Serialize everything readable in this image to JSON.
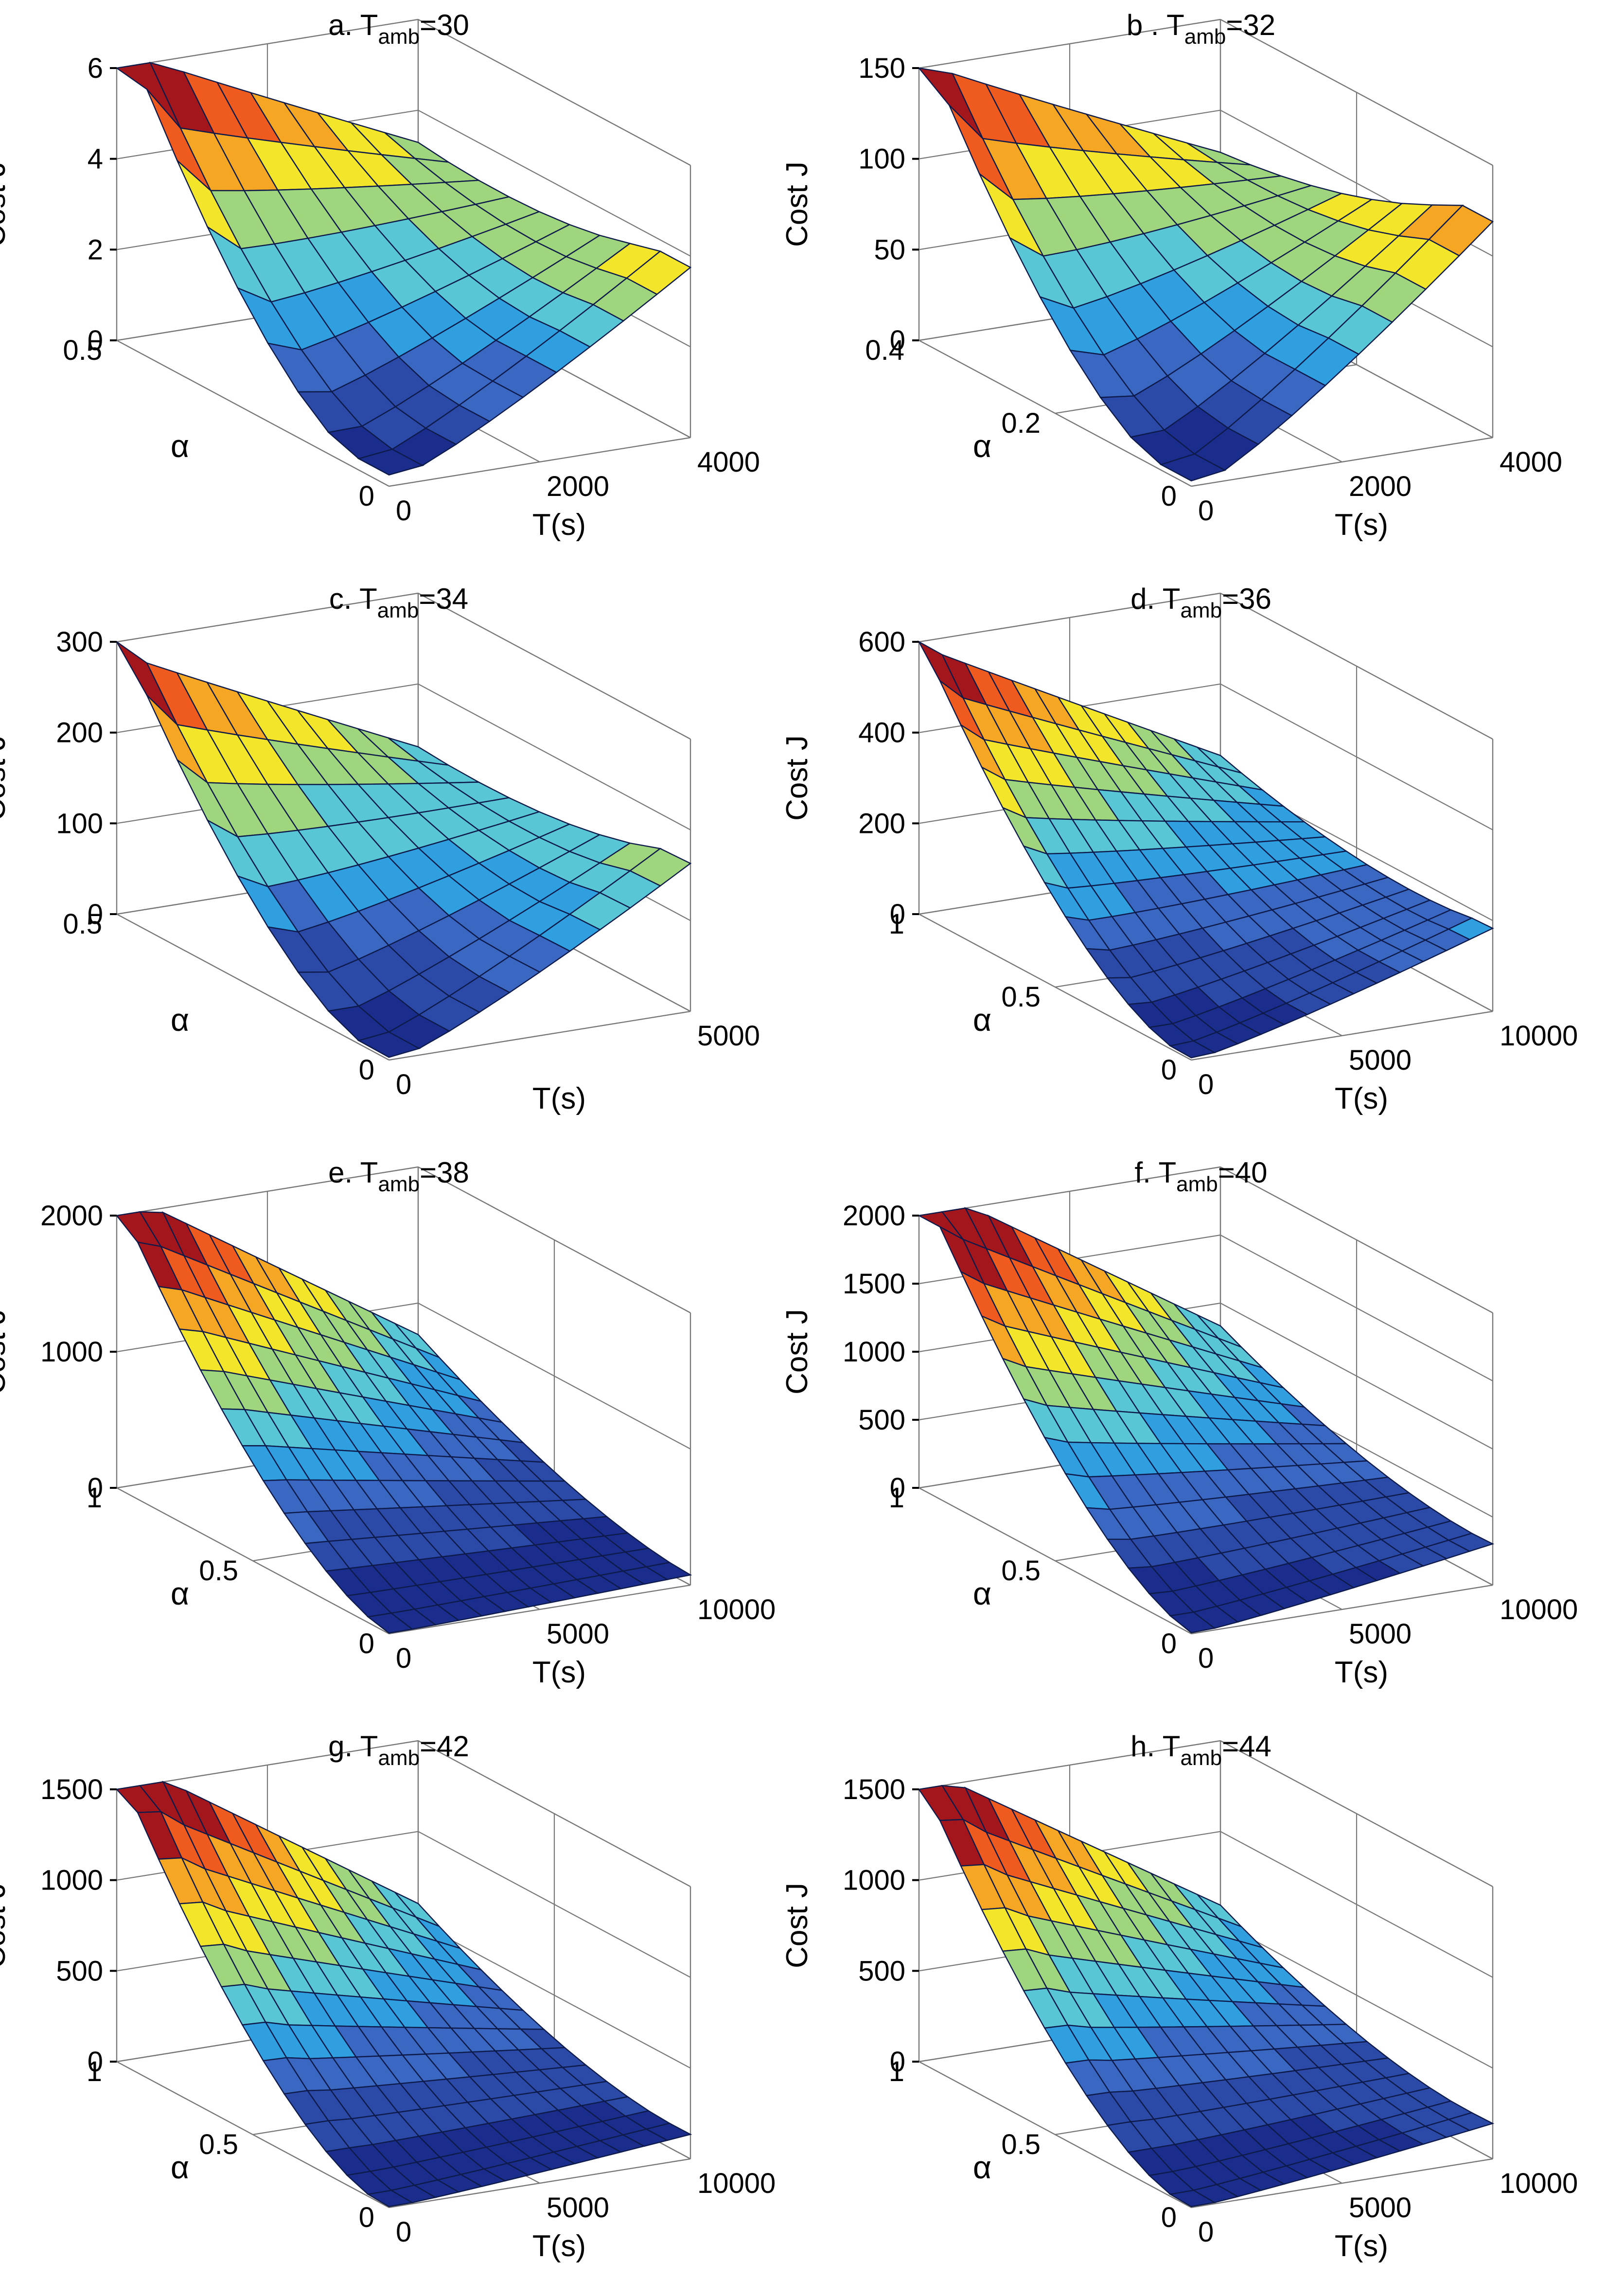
{
  "figure": {
    "colormap": [
      "#1b2d8c",
      "#2b4aa8",
      "#3a67c2",
      "#2f9fe0",
      "#59c6d6",
      "#9fd57c",
      "#f2e52a",
      "#f5a623",
      "#ef5a1e",
      "#a3171c"
    ]
  },
  "chart_data": [
    {
      "type": "surface3d",
      "id": "a",
      "title_prefix": "a. T",
      "title_sub": "amb",
      "title_suffix": "=30",
      "zlabel": "Cost J",
      "xlabel": "T(s)",
      "ylabel": "α",
      "x_range": [
        0,
        4000
      ],
      "y_range": [
        0,
        0.5
      ],
      "z_range": [
        0,
        6
      ],
      "x_ticks": [
        0,
        2000,
        4000
      ],
      "y_ticks": [
        0,
        0.5
      ],
      "z_ticks": [
        0,
        2,
        4,
        6
      ],
      "x_tick_labels": [
        "0",
        "2000",
        "4000"
      ],
      "y_tick_labels": [
        "0",
        "0.5"
      ],
      "z_tick_labels": [
        "0",
        "2",
        "4",
        "6"
      ],
      "nx": 9,
      "ny": 9,
      "ridge": {
        "x": 300,
        "y": 0.07
      },
      "surface": {
        "back_wall_max": 5.6,
        "front_edge_max": 3.2,
        "floor": 0.3,
        "valley_floor": 0.25,
        "left_edge_max": 3.0
      }
    },
    {
      "type": "surface3d",
      "id": "b",
      "title_prefix": "b . T",
      "title_sub": "amb",
      "title_suffix": "=32",
      "zlabel": "Cost J",
      "xlabel": "T(s)",
      "ylabel": "α",
      "x_range": [
        0,
        4000
      ],
      "y_range": [
        0,
        0.4
      ],
      "z_range": [
        0,
        150
      ],
      "x_ticks": [
        0,
        2000,
        4000
      ],
      "y_ticks": [
        0,
        0.2,
        0.4
      ],
      "z_ticks": [
        0,
        50,
        100,
        150
      ],
      "x_tick_labels": [
        "0",
        "2000",
        "4000"
      ],
      "y_tick_labels": [
        "0",
        "0.2",
        "0.4"
      ],
      "z_tick_labels": [
        "0",
        "50",
        "100",
        "150"
      ],
      "nx": 9,
      "ny": 9,
      "ridge": {
        "x": 300,
        "y": 0.05
      },
      "surface": {
        "back_wall_max": 140,
        "front_edge_max": 112,
        "floor": 4,
        "valley_floor": 3,
        "left_edge_max": 65
      }
    },
    {
      "type": "surface3d",
      "id": "c",
      "title_prefix": "c. T",
      "title_sub": "amb",
      "title_suffix": "=34",
      "zlabel": "Cost J",
      "xlabel": "T(s)",
      "ylabel": "α",
      "x_range": [
        0,
        5000
      ],
      "y_range": [
        0,
        0.5
      ],
      "z_range": [
        0,
        300
      ],
      "x_ticks": [
        0,
        5000
      ],
      "y_ticks": [
        0,
        0.5
      ],
      "z_ticks": [
        0,
        100,
        200,
        300
      ],
      "x_tick_labels": [
        "0",
        "5000"
      ],
      "y_tick_labels": [
        "0",
        "0.5"
      ],
      "z_tick_labels": [
        "0",
        "100",
        "200",
        "300"
      ],
      "nx": 10,
      "ny": 9,
      "ridge": {
        "x": 300,
        "y": 0.05
      },
      "surface": {
        "back_wall_max": 270,
        "front_edge_max": 155,
        "floor": 5,
        "valley_floor": 3,
        "left_edge_max": 110
      }
    },
    {
      "type": "surface3d",
      "id": "d",
      "title_prefix": "d. T",
      "title_sub": "amb",
      "title_suffix": "=36",
      "zlabel": "Cost J",
      "xlabel": "T(s)",
      "ylabel": "α",
      "x_range": [
        0,
        10000
      ],
      "y_range": [
        0,
        1
      ],
      "z_range": [
        0,
        600
      ],
      "x_ticks": [
        0,
        5000,
        10000
      ],
      "y_ticks": [
        0,
        0.5,
        1
      ],
      "z_ticks": [
        0,
        200,
        400,
        600
      ],
      "x_tick_labels": [
        "0",
        "5000",
        "10000"
      ],
      "y_tick_labels": [
        "0",
        "0.5",
        "1"
      ],
      "z_tick_labels": [
        "0",
        "200",
        "400",
        "600"
      ],
      "nx": 13,
      "ny": 13,
      "ridge": {
        "x": 500,
        "y": 0.06
      },
      "surface": {
        "back_wall_max": 560,
        "front_edge_max": 170,
        "floor": 8,
        "valley_floor": 5,
        "left_edge_max": 120
      }
    },
    {
      "type": "surface3d",
      "id": "e",
      "title_prefix": "e. T",
      "title_sub": "amb",
      "title_suffix": "=38",
      "zlabel": "Cost J",
      "xlabel": "T(s)",
      "ylabel": "α",
      "x_range": [
        0,
        10000
      ],
      "y_range": [
        0,
        1
      ],
      "z_range": [
        0,
        2000
      ],
      "x_ticks": [
        0,
        5000,
        10000
      ],
      "y_ticks": [
        0,
        0.5,
        1
      ],
      "z_ticks": [
        0,
        1000,
        2000
      ],
      "x_tick_labels": [
        "0",
        "5000",
        "10000"
      ],
      "y_tick_labels": [
        "0",
        "0.5",
        "1"
      ],
      "z_tick_labels": [
        "0",
        "1000",
        "2000"
      ],
      "nx": 13,
      "ny": 13,
      "ridge": {
        "x": 500,
        "y": 0.0
      },
      "surface": {
        "back_wall_max": 2100,
        "front_edge_max": 60,
        "floor": 10,
        "valley_floor": 5,
        "left_edge_max": 80
      }
    },
    {
      "type": "surface3d",
      "id": "f",
      "title_prefix": "f. T",
      "title_sub": "amb",
      "title_suffix": "=40",
      "zlabel": "Cost J",
      "xlabel": "T(s)",
      "ylabel": "α",
      "x_range": [
        0,
        10000
      ],
      "y_range": [
        0,
        1
      ],
      "z_range": [
        0,
        2000
      ],
      "x_ticks": [
        0,
        5000,
        10000
      ],
      "y_ticks": [
        0,
        0.5,
        1
      ],
      "z_ticks": [
        0,
        500,
        1000,
        1500,
        2000
      ],
      "x_tick_labels": [
        "0",
        "5000",
        "10000"
      ],
      "y_tick_labels": [
        "0",
        "0.5",
        "1"
      ],
      "z_tick_labels": [
        "0",
        "500",
        "1000",
        "1500",
        "2000"
      ],
      "nx": 13,
      "ny": 13,
      "ridge": {
        "x": 500,
        "y": 0.0
      },
      "surface": {
        "back_wall_max": 2150,
        "front_edge_max": 280,
        "floor": 15,
        "valley_floor": 8,
        "left_edge_max": 300
      }
    },
    {
      "type": "surface3d",
      "id": "g",
      "title_prefix": "g. T",
      "title_sub": "amb",
      "title_suffix": "=42",
      "zlabel": "Cost J",
      "xlabel": "T(s)",
      "ylabel": "α",
      "x_range": [
        0,
        10000
      ],
      "y_range": [
        0,
        1
      ],
      "z_range": [
        0,
        1500
      ],
      "x_ticks": [
        0,
        5000,
        10000
      ],
      "y_ticks": [
        0,
        0.5,
        1
      ],
      "z_ticks": [
        0,
        500,
        1000,
        1500
      ],
      "x_tick_labels": [
        "0",
        "5000",
        "10000"
      ],
      "y_tick_labels": [
        "0",
        "0.5",
        "1"
      ],
      "z_tick_labels": [
        "0",
        "500",
        "1000",
        "1500"
      ],
      "nx": 13,
      "ny": 13,
      "ridge": {
        "x": 600,
        "y": 0.05
      },
      "surface": {
        "back_wall_max": 1600,
        "front_edge_max": 120,
        "floor": 10,
        "valley_floor": 5,
        "left_edge_max": 70
      }
    },
    {
      "type": "surface3d",
      "id": "h",
      "title_prefix": "h. T",
      "title_sub": "amb",
      "title_suffix": "=44",
      "zlabel": "Cost J",
      "xlabel": "T(s)",
      "ylabel": "α",
      "x_range": [
        0,
        10000
      ],
      "y_range": [
        0,
        1
      ],
      "z_range": [
        0,
        1500
      ],
      "x_ticks": [
        0,
        5000,
        10000
      ],
      "y_ticks": [
        0,
        0.5,
        1
      ],
      "z_ticks": [
        0,
        500,
        1000,
        1500
      ],
      "x_tick_labels": [
        "0",
        "5000",
        "10000"
      ],
      "y_tick_labels": [
        "0",
        "0.5",
        "1"
      ],
      "z_tick_labels": [
        "0",
        "500",
        "1000",
        "1500"
      ],
      "nx": 13,
      "ny": 13,
      "ridge": {
        "x": 600,
        "y": 0.05
      },
      "surface": {
        "back_wall_max": 1550,
        "front_edge_max": 180,
        "floor": 10,
        "valley_floor": 5,
        "left_edge_max": 70
      }
    }
  ]
}
